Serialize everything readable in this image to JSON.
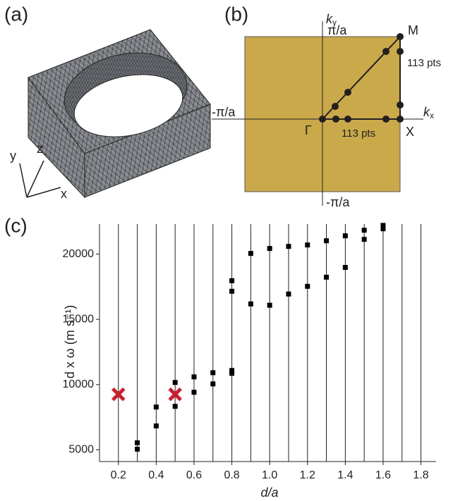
{
  "panels": {
    "a": "(a)",
    "b": "(b)",
    "c": "(c)"
  },
  "mesh": {
    "axes": {
      "x": "x",
      "y": "y",
      "z": "z"
    }
  },
  "brillouin_zone": {
    "ky": {
      "symbol": "k",
      "subscript": "y"
    },
    "kx": {
      "symbol": "k",
      "subscript": "x"
    },
    "pi_top": "π/a",
    "pi_left": "-π/a",
    "pi_bottom": "-π/a",
    "M": "M",
    "Gamma": "Γ",
    "X": "X",
    "pts_vertical": "113 pts",
    "pts_horizontal": "113 pts"
  },
  "chart_data": {
    "type": "scatter",
    "x_label": "d/a",
    "y_label": "d x ω (m s⁻¹)",
    "xlim": [
      0.1,
      1.88
    ],
    "ylim": [
      4100,
      22300
    ],
    "xticks": [
      0.2,
      0.4,
      0.6,
      0.8,
      {
        "value": 1,
        "label": "1.0"
      },
      1.2,
      1.4,
      1.6,
      1.8
    ],
    "yticks": [
      5000,
      10000,
      15000,
      20000
    ],
    "x_grid_lines": [
      0.2,
      0.3,
      0.4,
      0.5,
      0.6,
      0.7,
      0.8,
      0.9,
      1,
      1.1,
      1.2,
      1.3,
      1.4,
      1.5,
      1.6,
      1.7,
      1.8
    ],
    "series": [
      {
        "color": "#000000",
        "marker": "square",
        "x": [
          0.3,
          0.3,
          0.4,
          0.4,
          0.5,
          0.5,
          0.6,
          0.6,
          0.7,
          0.7,
          0.8,
          0.8,
          0.8,
          0.8,
          0.9,
          0.9,
          1,
          1,
          1.1,
          1.1,
          1.2,
          1.2,
          1.3,
          1.3,
          1.4,
          1.4,
          1.5,
          1.5,
          1.6,
          1.6
        ],
        "values": [
          5540,
          5050,
          8280,
          6830,
          10160,
          8330,
          10590,
          9410,
          10910,
          10050,
          17960,
          17150,
          11080,
          10860,
          20050,
          16180,
          20430,
          16080,
          20590,
          16940,
          20700,
          17530,
          21020,
          18230,
          21400,
          18980,
          21830,
          21130,
          22200,
          21940
        ]
      },
      {
        "color": "#c8202f",
        "marker": "cross",
        "x": [
          0.2,
          0.5
        ],
        "values": [
          9250,
          9250
        ]
      }
    ]
  }
}
